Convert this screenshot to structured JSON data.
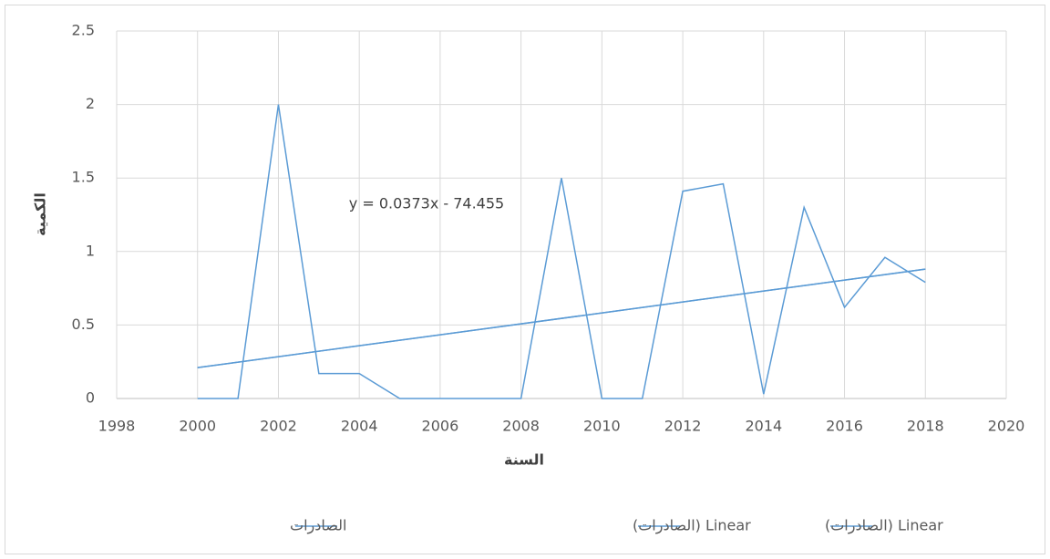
{
  "chart_data": {
    "type": "line",
    "x_label": "السنة",
    "y_label": "الكمية",
    "annotation": "y = 0.0373x - 74.455",
    "series": [
      {
        "name": "الصادرات",
        "color": "#5b9bd5",
        "x": [
          2000,
          2001,
          2002,
          2003,
          2004,
          2005,
          2006,
          2007,
          2008,
          2009,
          2010,
          2011,
          2012,
          2013,
          2014,
          2015,
          2016,
          2017,
          2018
        ],
        "values": [
          0,
          0,
          2.0,
          0.17,
          0.17,
          0,
          0,
          0,
          0,
          1.5,
          0,
          0,
          1.41,
          1.46,
          0.03,
          1.3,
          0.62,
          0.96,
          0.79
        ]
      },
      {
        "name": "Linear (الصادرات)",
        "color": "#5b9bd5",
        "x": [
          2000,
          2018
        ],
        "values": [
          0.21,
          0.88
        ]
      },
      {
        "name": "Linear (الصادرات)",
        "color": "#5b9bd5",
        "x": [
          2000,
          2018
        ],
        "values": [
          0.21,
          0.88
        ]
      }
    ],
    "xlim": [
      1998,
      2020
    ],
    "xticks": [
      1998,
      2000,
      2002,
      2004,
      2006,
      2008,
      2010,
      2012,
      2014,
      2016,
      2018,
      2020
    ],
    "ylim": [
      0,
      2.5
    ],
    "yticks": [
      0,
      0.5,
      1,
      1.5,
      2,
      2.5
    ],
    "grid": true,
    "legend": "bottom"
  }
}
